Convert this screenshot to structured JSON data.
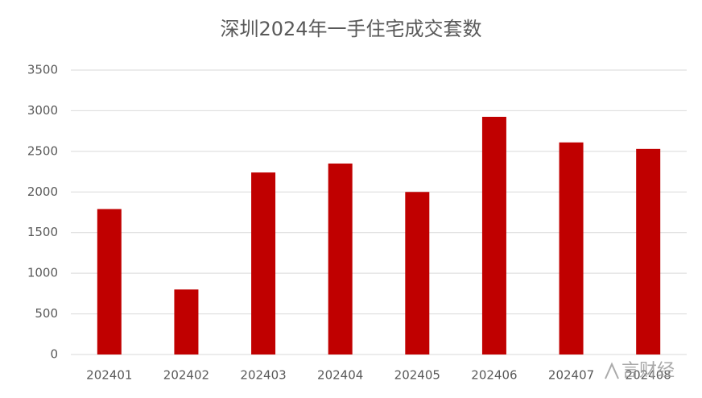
{
  "chart_data": {
    "type": "bar",
    "title": "深圳2024年一手住宅成交套数",
    "categories": [
      "202401",
      "202402",
      "202403",
      "202404",
      "202405",
      "202406",
      "202407",
      "202408"
    ],
    "values": [
      1790,
      800,
      2240,
      2350,
      2000,
      2925,
      2610,
      2530
    ],
    "color": "#c00000",
    "ylim": [
      0,
      3500
    ],
    "yticks": [
      0,
      500,
      1000,
      1500,
      2000,
      2500,
      3000,
      3500
    ],
    "grid": true,
    "watermark": "言财经"
  }
}
